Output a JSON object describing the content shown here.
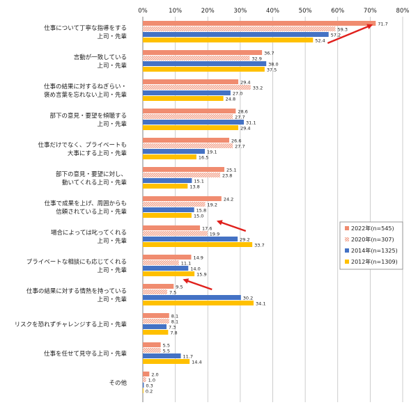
{
  "chart_data": {
    "type": "bar",
    "orientation": "horizontal",
    "categories": [
      [
        "仕事について丁寧な指導をする",
        "上司・先輩"
      ],
      [
        "言動が一致している",
        "上司・先輩"
      ],
      [
        "仕事の結果に対するねぎらい・",
        "褒め言葉を忘れない上司・先輩"
      ],
      [
        "部下の意見・要望を傾聴する",
        "上司・先輩"
      ],
      [
        "仕事だけでなく、プライベートも",
        "大事にする上司・先輩"
      ],
      [
        "部下の意見・要望に対し、",
        "動いてくれる上司・先輩"
      ],
      [
        "仕事で成果を上げ、周囲からも",
        "信頼されている上司・先輩"
      ],
      [
        "場合によっては叱ってくれる",
        "上司・先輩"
      ],
      [
        "プライベートな相談にも応じてくれる",
        "上司・先輩"
      ],
      [
        "仕事の結果に対する情熱を持っている",
        "上司・先輩"
      ],
      [
        "リスクを恐れずチャレンジする上司・先輩"
      ],
      [
        "仕事を任せて見守る上司・先輩"
      ],
      [
        "その他"
      ]
    ],
    "series": [
      {
        "name": "2022年(n=545)",
        "color": "#f08c70",
        "pattern": "solid",
        "values": [
          71.7,
          36.7,
          29.4,
          28.6,
          26.6,
          25.1,
          24.2,
          17.6,
          14.9,
          9.5,
          8.1,
          5.5,
          2.0
        ]
      },
      {
        "name": "2020年(n=307)",
        "color": "#f08c70",
        "pattern": "hatched",
        "values": [
          59.3,
          32.9,
          33.2,
          27.7,
          27.7,
          23.8,
          19.2,
          19.9,
          11.1,
          7.5,
          8.1,
          5.5,
          1.0
        ]
      },
      {
        "name": "2014年(n=1325)",
        "color": "#4472c4",
        "pattern": "solid",
        "values": [
          57.2,
          38.0,
          27.0,
          31.1,
          19.1,
          15.1,
          15.8,
          29.2,
          14.0,
          30.2,
          7.3,
          11.7,
          0.3
        ]
      },
      {
        "name": "2012年(n=1309)",
        "color": "#ffc000",
        "pattern": "solid",
        "values": [
          52.4,
          37.5,
          24.8,
          29.4,
          16.5,
          13.8,
          15.0,
          33.7,
          15.9,
          34.1,
          7.8,
          14.4,
          0.2
        ]
      }
    ],
    "x_ticks": [
      "0%",
      "10%",
      "20%",
      "30%",
      "40%",
      "50%",
      "60%",
      "70%",
      "80%"
    ],
    "xlim": [
      0,
      80
    ],
    "grid": true,
    "legend_position": "right",
    "annotation_color": "#e0201c",
    "annotations": [
      {
        "type": "arrow",
        "category_index": 0,
        "direction": "up-right"
      },
      {
        "type": "arrow",
        "category_index": 7,
        "direction": "up-left"
      },
      {
        "type": "arrow",
        "category_index": 9,
        "direction": "up-left"
      }
    ]
  }
}
